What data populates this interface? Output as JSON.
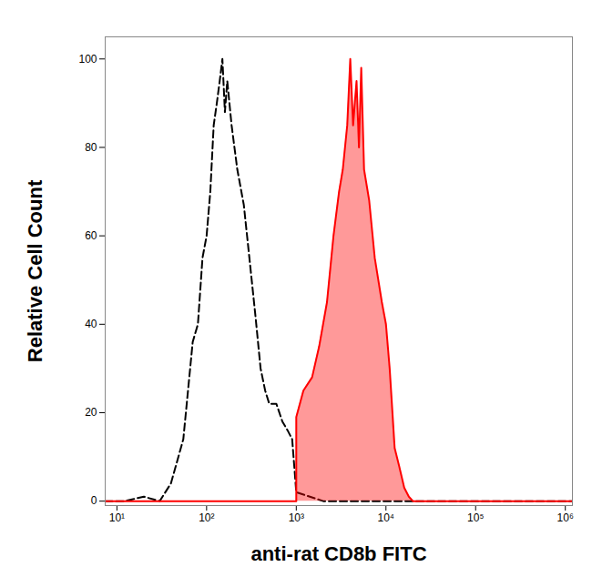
{
  "chart_data": {
    "type": "line",
    "xlabel": "anti-rat CD8b FITC",
    "ylabel": "Relative Cell Count",
    "log": "x",
    "grid": false,
    "xlim": [
      7.4,
      1200000
    ],
    "ylim": [
      -1,
      105
    ],
    "xticks": [
      {
        "value": 10,
        "label": "10¹"
      },
      {
        "value": 100,
        "label": "10²"
      },
      {
        "value": 1000,
        "label": "10³"
      },
      {
        "value": 10000,
        "label": "10⁴"
      },
      {
        "value": 100000,
        "label": "10⁵"
      },
      {
        "value": 1000000,
        "label": "10⁶"
      }
    ],
    "yticks": [
      0,
      20,
      40,
      60,
      80,
      100
    ],
    "series": [
      {
        "type": "line",
        "color": "#000000",
        "line_style": "dashed",
        "x": [
          7.4,
          12,
          20,
          30,
          40,
          55,
          70,
          80,
          90,
          100,
          110,
          120,
          130,
          140,
          150,
          160,
          170,
          190,
          220,
          260,
          300,
          350,
          400,
          450,
          500,
          600,
          700,
          800,
          900,
          1000,
          2000,
          10000,
          1200000
        ],
        "values": [
          0,
          0,
          1,
          0,
          4,
          14,
          36,
          40,
          55,
          60,
          70,
          85,
          90,
          95,
          100,
          88,
          95,
          85,
          75,
          67,
          55,
          42,
          30,
          25,
          22,
          22,
          18,
          16,
          14,
          2,
          0,
          0,
          0
        ]
      },
      {
        "type": "area",
        "color": "#ff0000",
        "line_style": "solid",
        "x": [
          7.4,
          1000,
          1000,
          1200,
          1500,
          1800,
          2200,
          2600,
          3000,
          3300,
          3700,
          4000,
          4300,
          4700,
          5000,
          5300,
          5700,
          6500,
          7500,
          9000,
          10000,
          11000,
          12500,
          14000,
          16000,
          18000,
          20000,
          100000,
          1200000
        ],
        "values": [
          0,
          0,
          19,
          25,
          28,
          35,
          45,
          60,
          70,
          75,
          85,
          100,
          85,
          95,
          80,
          98,
          75,
          68,
          55,
          45,
          40,
          30,
          12,
          8,
          3,
          1,
          0,
          0,
          0
        ]
      }
    ]
  }
}
